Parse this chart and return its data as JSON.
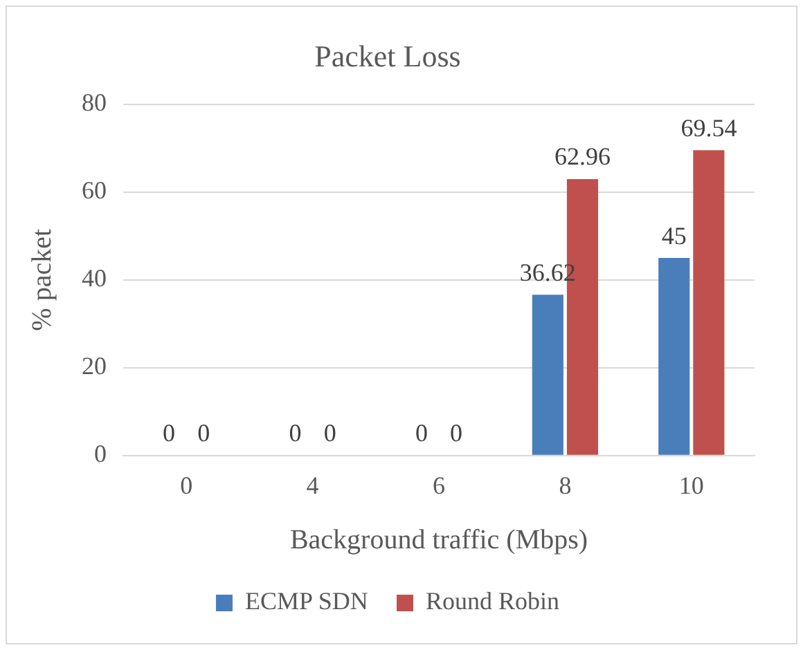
{
  "chart_data": {
    "type": "bar",
    "title": "Packet Loss",
    "xlabel": "Background traffic (Mbps)",
    "ylabel": "% packet",
    "categories": [
      "0",
      "4",
      "6",
      "8",
      "10"
    ],
    "series": [
      {
        "name": "ECMP SDN",
        "color": "#4a7ebb",
        "values": [
          0,
          0,
          0,
          36.62,
          45
        ]
      },
      {
        "name": "Round Robin",
        "color": "#c0504d",
        "values": [
          0,
          0,
          0,
          62.96,
          69.54
        ]
      }
    ],
    "ylim": [
      0,
      80
    ],
    "yticks": [
      0,
      20,
      40,
      60,
      80
    ],
    "grid": "y",
    "legend": "bottom",
    "data_labels": true
  }
}
